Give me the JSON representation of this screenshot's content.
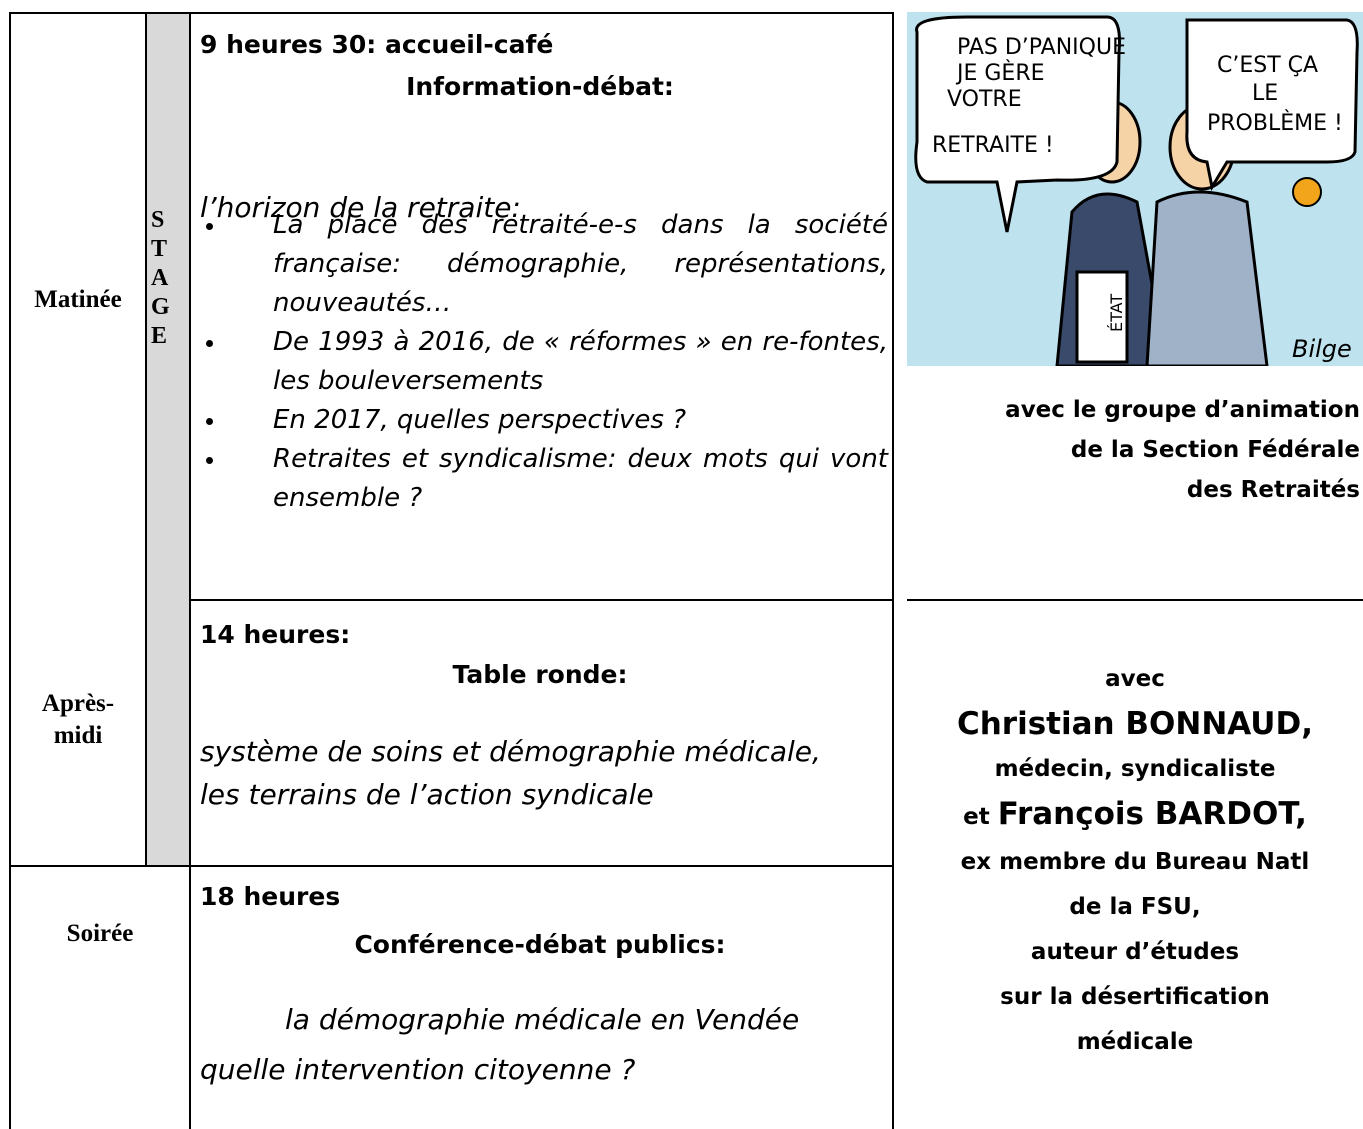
{
  "schedule": {
    "stage": "STAGE",
    "rows": [
      {
        "label": [
          "Matinée"
        ],
        "time": "9 heures 30: accueil-café",
        "heading": "Information-débat:",
        "topic": [
          "l’horizon de la retraite:"
        ],
        "items": [
          "La place des retraité-e-s dans la société française: démographie, représentations, nouveautés…",
          "De 1993 à 2016, de « réformes » en re-fontes, les bouleversements",
          "En 2017, quelles perspectives ?",
          "Retraites et syndicalisme: deux mots qui vont ensemble ?"
        ]
      },
      {
        "label": [
          "Après-",
          "midi"
        ],
        "time": "14 heures:",
        "heading": "Table ronde:",
        "topic": [
          "système de soins et démographie médicale,",
          "les terrains de l’action syndicale"
        ]
      },
      {
        "label": [
          "Soirée"
        ],
        "time": "18 heures",
        "heading": "Conférence-débat publics:",
        "topic": [
          "la démographie médicale en Vendée",
          "quelle intervention citoyenne ?"
        ]
      }
    ]
  },
  "cartoon": {
    "bubble_left": [
      "PAS D’PANIQUE",
      "JE GÈRE",
      "VOTRE",
      "RETRAITE !"
    ],
    "bubble_right": [
      "C’EST ÇA",
      "LE",
      "PROBLÈME !"
    ],
    "folder": "ÉTAT",
    "signature": "Bilge"
  },
  "caption": [
    "avec le groupe d’animation",
    "de la Section Fédérale",
    "des Retraités"
  ],
  "speakers": [
    "avec",
    [
      "Christian BONNAUD,"
    ],
    "médecin, syndicaliste",
    [
      "et",
      "François BARDOT,"
    ],
    "ex membre du Bureau Natl",
    "de la FSU,",
    "auteur d’études",
    "sur la désertification",
    "médicale"
  ]
}
